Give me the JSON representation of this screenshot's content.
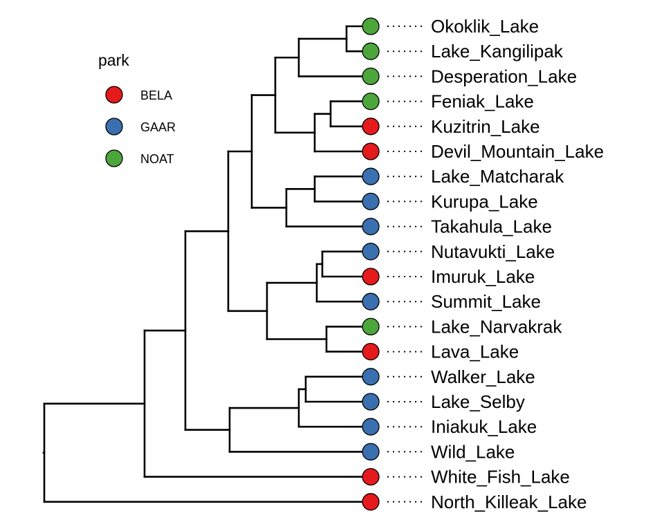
{
  "legend": {
    "title": "park",
    "entries": [
      {
        "key": "BELA",
        "label": "BELA",
        "color": "#e41a1c"
      },
      {
        "key": "GAAR",
        "label": "GAAR",
        "color": "#3a6fb0"
      },
      {
        "key": "NOAT",
        "label": "NOAT",
        "color": "#4da63c"
      }
    ]
  },
  "tree": {
    "leaves": [
      {
        "name": "Okoklik_Lake",
        "park": "NOAT"
      },
      {
        "name": "Lake_Kangilipak",
        "park": "NOAT"
      },
      {
        "name": "Desperation_Lake",
        "park": "NOAT"
      },
      {
        "name": "Feniak_Lake",
        "park": "NOAT"
      },
      {
        "name": "Kuzitrin_Lake",
        "park": "BELA"
      },
      {
        "name": "Devil_Mountain_Lake",
        "park": "BELA"
      },
      {
        "name": "Lake_Matcharak",
        "park": "GAAR"
      },
      {
        "name": "Kurupa_Lake",
        "park": "GAAR"
      },
      {
        "name": "Takahula_Lake",
        "park": "GAAR"
      },
      {
        "name": "Nutavukti_Lake",
        "park": "GAAR"
      },
      {
        "name": "Imuruk_Lake",
        "park": "BELA"
      },
      {
        "name": "Summit_Lake",
        "park": "GAAR"
      },
      {
        "name": "Lake_Narvakrak",
        "park": "NOAT"
      },
      {
        "name": "Lava_Lake",
        "park": "BELA"
      },
      {
        "name": "Walker_Lake",
        "park": "GAAR"
      },
      {
        "name": "Lake_Selby",
        "park": "GAAR"
      },
      {
        "name": "Iniakuk_Lake",
        "park": "GAAR"
      },
      {
        "name": "Wild_Lake",
        "park": "GAAR"
      },
      {
        "name": "White_Fish_Lake",
        "park": "BELA"
      },
      {
        "name": "North_Killeak_Lake",
        "park": "BELA"
      }
    ]
  }
}
